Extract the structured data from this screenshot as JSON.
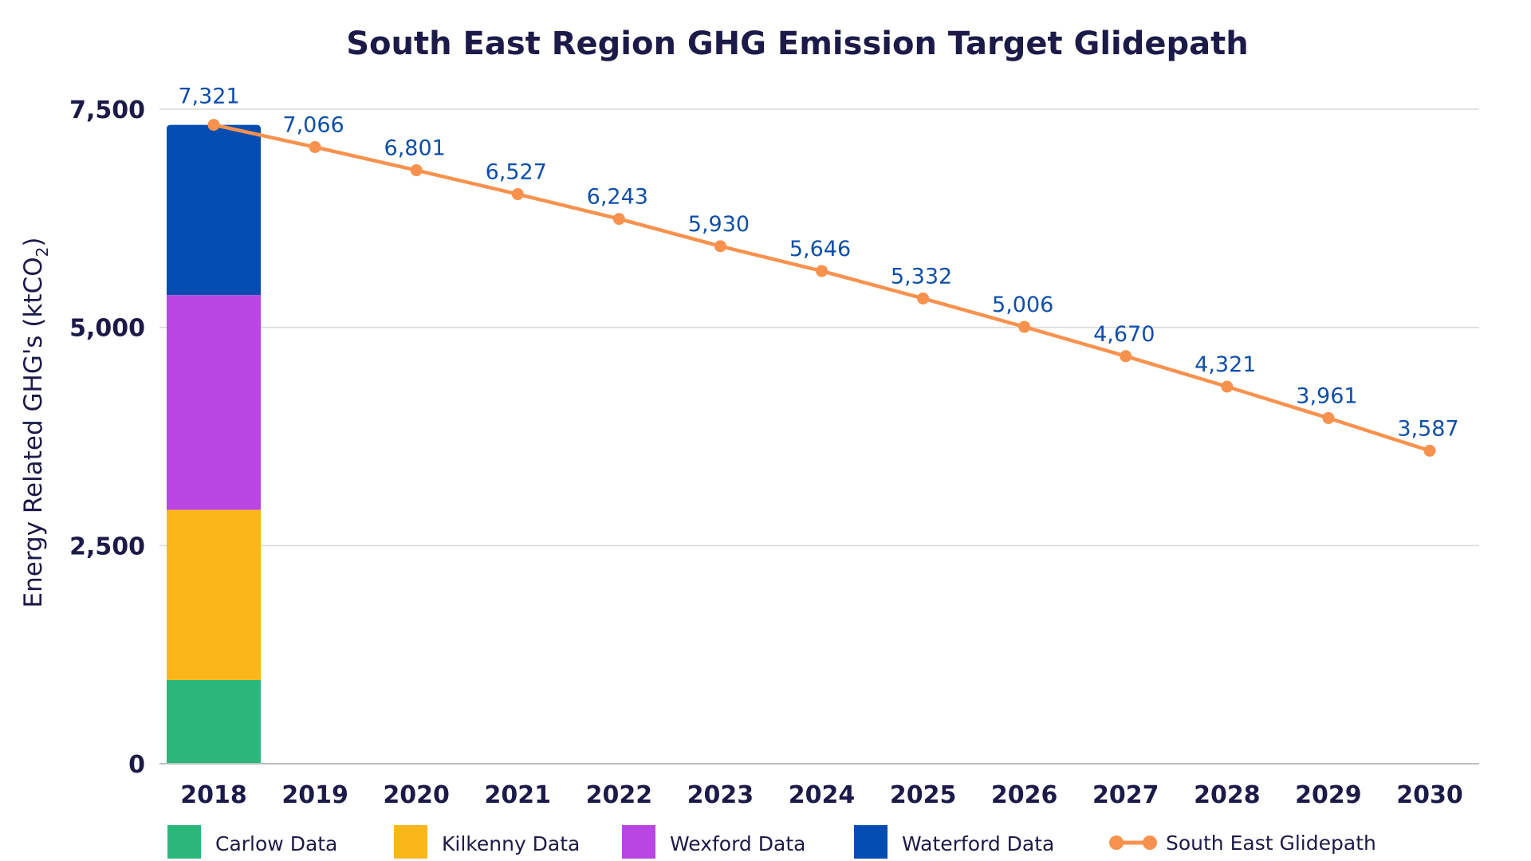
{
  "chart_data": {
    "type": "bar",
    "title": "South East Region GHG Emission Target Glidepath",
    "ylabel": "Energy Related GHG's (ktCO",
    "ylabel_sub": "2",
    "ylabel_close": ")",
    "xlabel": "",
    "ylim": [
      0,
      7500
    ],
    "yticks": [
      0,
      2500,
      5000,
      7500
    ],
    "ytick_labels": [
      "0",
      "2,500",
      "5,000",
      "7,500"
    ],
    "grid": true,
    "legend_position": "bottom",
    "categories": [
      "2018",
      "2019",
      "2020",
      "2021",
      "2022",
      "2023",
      "2024",
      "2025",
      "2026",
      "2027",
      "2028",
      "2029",
      "2030"
    ],
    "stacked_series": [
      {
        "name": "Carlow Data",
        "color": "#2bb77b",
        "values": [
          960
        ]
      },
      {
        "name": "Kilkenny Data",
        "color": "#fbb619",
        "values": [
          1950
        ]
      },
      {
        "name": "Wexford Data",
        "color": "#b945e3",
        "values": [
          2460
        ]
      },
      {
        "name": "Waterford Data",
        "color": "#034db2",
        "values": [
          1951
        ]
      }
    ],
    "line_series": {
      "name": "South East Glidepath",
      "type": "line",
      "color": "#f7924e",
      "values": [
        7321,
        7066,
        6801,
        6527,
        6243,
        5930,
        5646,
        5332,
        5006,
        4670,
        4321,
        3961,
        3587
      ],
      "labels": [
        "7,321",
        "7,066",
        "6,801",
        "6,527",
        "6,243",
        "5,930",
        "5,646",
        "5,332",
        "5,006",
        "4,670",
        "4,321",
        "3,961",
        "3,587"
      ],
      "label_color": "#0f4fa8"
    }
  }
}
